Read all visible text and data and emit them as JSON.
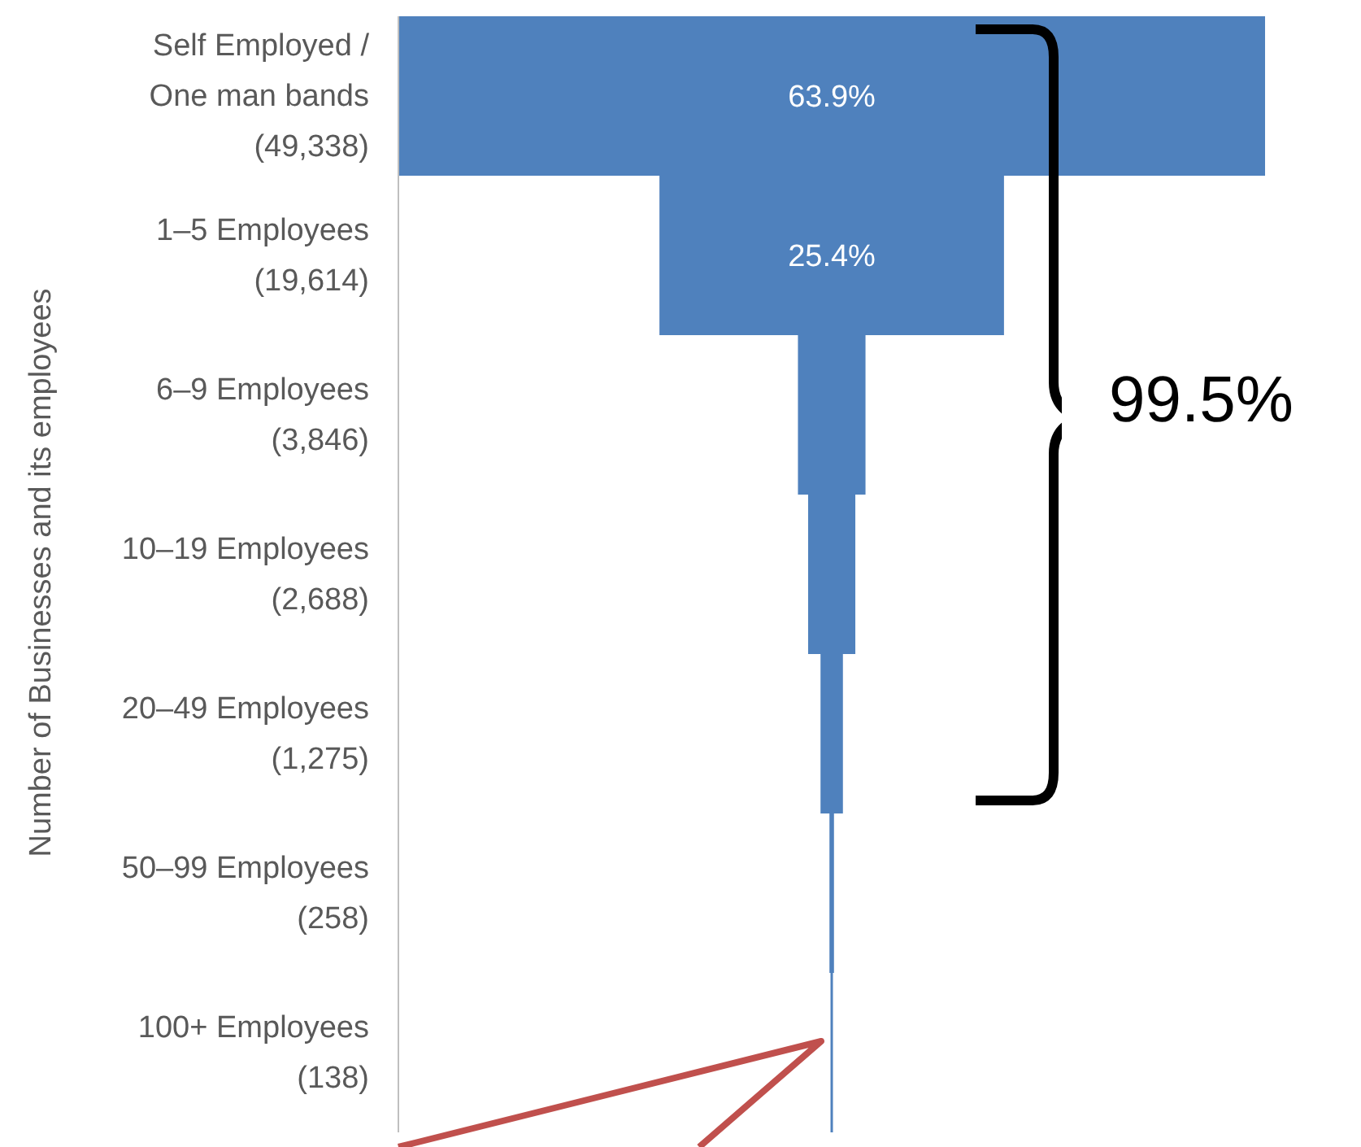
{
  "chart_data": {
    "type": "other",
    "ylabel": "Number of Businesses and its employees",
    "categories": [
      "Self Employed / One man bands",
      "1–5 Employees",
      "6–9 Employees",
      "10–19 Employees",
      "20–49 Employees",
      "50–99 Employees",
      "100+ Employees"
    ],
    "values": [
      49338,
      19614,
      3846,
      2688,
      1275,
      258,
      138
    ],
    "value_labels": [
      "(49,338)",
      "(19,614)",
      "(3,846)",
      "(2,688)",
      "(1,275)",
      "(258)",
      "(138)"
    ],
    "color": "#4f81bd",
    "annotations": [
      {
        "text": "63.9%",
        "y": "Self Employed / One man bands"
      },
      {
        "text": "25.4%",
        "y": "1–5 Employees"
      },
      "99.5%"
    ]
  }
}
